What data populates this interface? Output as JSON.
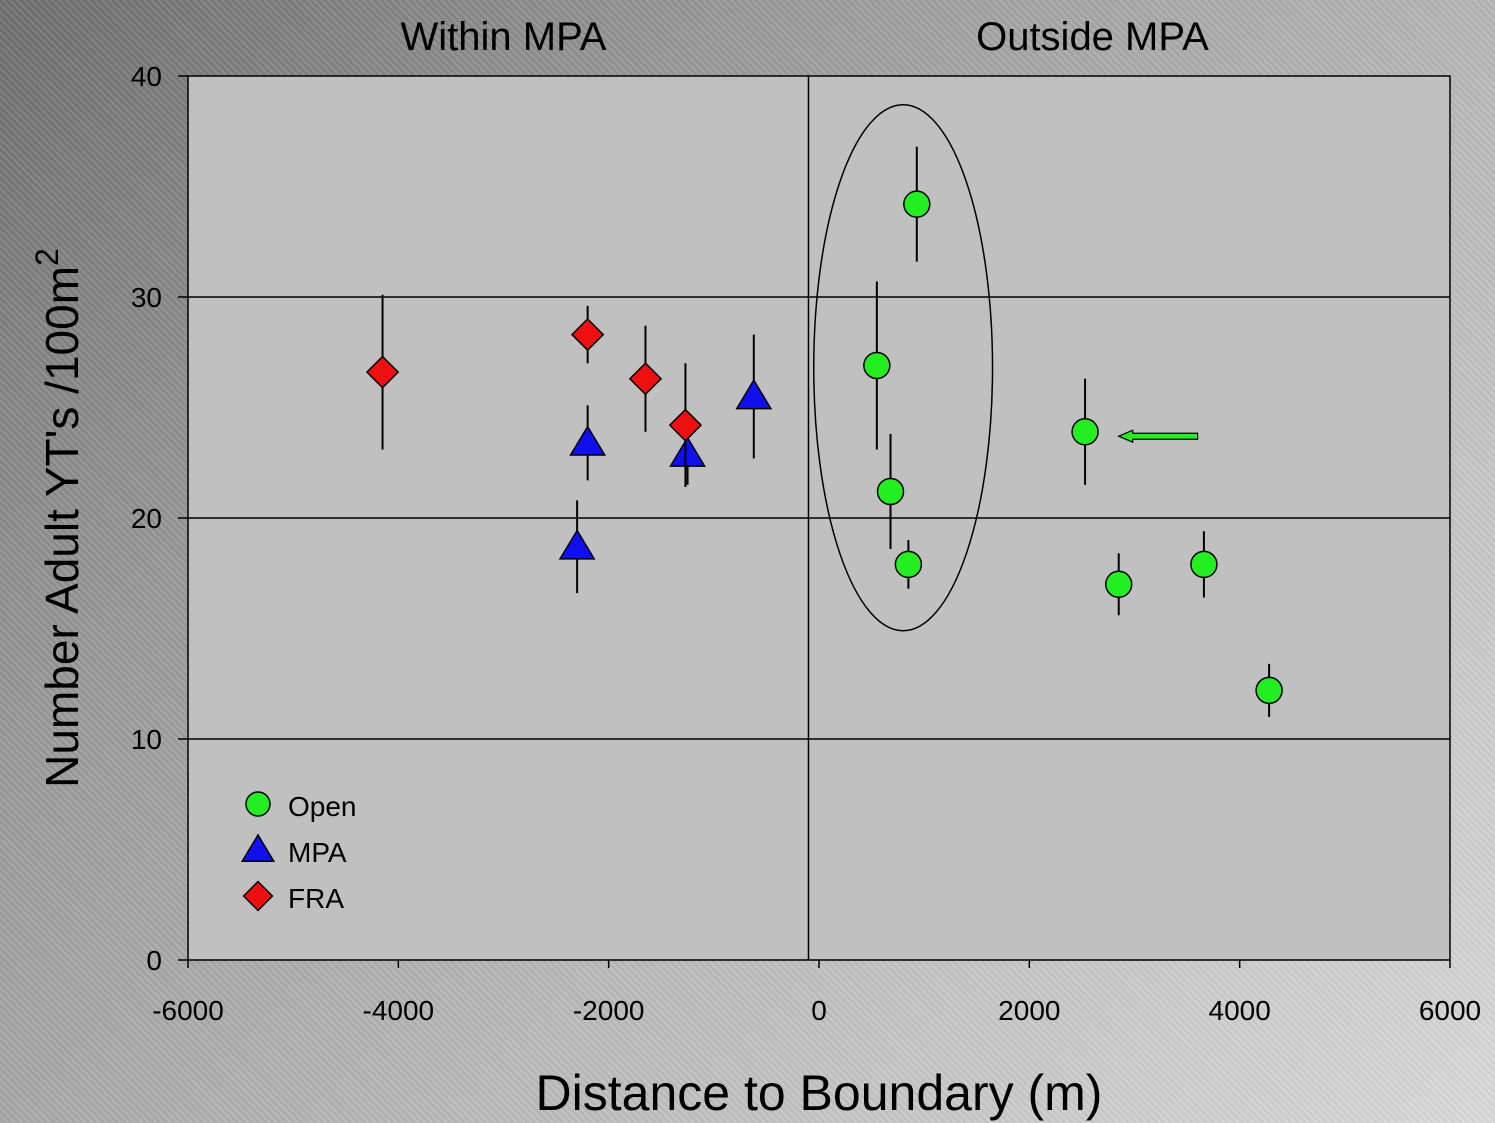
{
  "chart_data": {
    "type": "scatter",
    "xlabel": "Distance to Boundary (m)",
    "ylabel": "Number Adult YT's /100m",
    "ylabel_superscript": "2",
    "xlim": [
      -6000,
      6000
    ],
    "ylim": [
      0,
      40
    ],
    "xticks": [
      -6000,
      -4000,
      -2000,
      0,
      2000,
      4000,
      6000
    ],
    "yticks": [
      0,
      10,
      20,
      30,
      40
    ],
    "grid": "horizontal",
    "boundary_x": -100,
    "region_labels": [
      {
        "text": "Within MPA",
        "x": -3000
      },
      {
        "text": "Outside MPA",
        "x": 2600
      }
    ],
    "legend_position": "bottom-left",
    "series": [
      {
        "name": "Open",
        "marker": "circle",
        "color": "#22ee22",
        "points": [
          {
            "x": 930,
            "y": 34.2,
            "err": 2.6
          },
          {
            "x": 550,
            "y": 26.9,
            "err": 3.8
          },
          {
            "x": 680,
            "y": 21.2,
            "err": 2.6
          },
          {
            "x": 850,
            "y": 17.9,
            "err": 1.1
          },
          {
            "x": 2530,
            "y": 23.9,
            "err": 2.4
          },
          {
            "x": 2850,
            "y": 17.0,
            "err": 1.4
          },
          {
            "x": 3660,
            "y": 17.9,
            "err": 1.5
          },
          {
            "x": 4280,
            "y": 12.2,
            "err": 1.2
          }
        ]
      },
      {
        "name": "MPA",
        "marker": "triangle",
        "color": "#1010ee",
        "points": [
          {
            "x": -2300,
            "y": 18.7,
            "err": 2.1
          },
          {
            "x": -2200,
            "y": 23.4,
            "err": 1.7
          },
          {
            "x": -1250,
            "y": 22.9,
            "err": 1.4
          },
          {
            "x": -620,
            "y": 25.5,
            "err": 2.8
          }
        ]
      },
      {
        "name": "FRA",
        "marker": "diamond",
        "color": "#ee1010",
        "points": [
          {
            "x": -4150,
            "y": 26.6,
            "err": 3.5
          },
          {
            "x": -2200,
            "y": 28.3,
            "err": 1.3
          },
          {
            "x": -1650,
            "y": 26.3,
            "err": 2.4
          },
          {
            "x": -1270,
            "y": 24.2,
            "err": 2.8
          }
        ]
      }
    ],
    "annotations": [
      {
        "type": "ellipse",
        "cx": 800,
        "cy": 26.8,
        "rx": 850,
        "ry": 11.9
      },
      {
        "type": "arrow",
        "from_x": 3600,
        "to_x": 2850,
        "y": 23.7,
        "color": "#22ee22"
      }
    ]
  }
}
